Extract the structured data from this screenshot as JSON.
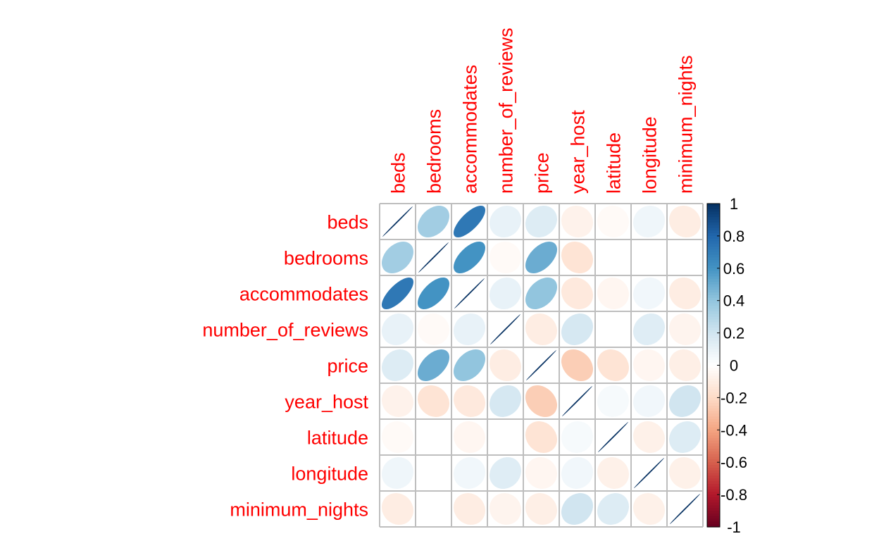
{
  "chart_data": {
    "type": "heatmap",
    "variables": [
      "beds",
      "bedrooms",
      "accommodates",
      "number_of_reviews",
      "price",
      "year_host",
      "latitude",
      "longitude",
      "minimum_nights"
    ],
    "matrix": [
      [
        1.0,
        0.35,
        0.72,
        0.1,
        0.15,
        -0.07,
        -0.03,
        0.07,
        -0.1
      ],
      [
        0.35,
        1.0,
        0.6,
        -0.03,
        0.5,
        -0.15,
        0.0,
        0.0,
        0.0
      ],
      [
        0.72,
        0.6,
        1.0,
        0.1,
        0.4,
        -0.12,
        -0.05,
        0.06,
        -0.1
      ],
      [
        0.1,
        -0.03,
        0.1,
        1.0,
        -0.1,
        0.18,
        0.0,
        0.14,
        -0.06
      ],
      [
        0.15,
        0.5,
        0.4,
        -0.1,
        1.0,
        -0.25,
        -0.15,
        -0.05,
        -0.09
      ],
      [
        -0.07,
        -0.15,
        -0.12,
        0.18,
        -0.25,
        1.0,
        0.04,
        0.06,
        0.2
      ],
      [
        -0.03,
        0.0,
        -0.05,
        0.0,
        -0.15,
        0.04,
        1.0,
        -0.08,
        0.15
      ],
      [
        0.07,
        0.0,
        0.06,
        0.14,
        -0.05,
        0.06,
        -0.08,
        1.0,
        -0.08
      ],
      [
        -0.1,
        0.0,
        -0.1,
        -0.06,
        -0.09,
        0.2,
        0.15,
        -0.08,
        1.0
      ]
    ],
    "colorbar": {
      "range": [
        -1,
        1
      ],
      "ticks": [
        "1",
        "0.8",
        "0.6",
        "0.4",
        "0.2",
        "0",
        "-0.2",
        "-0.4",
        "-0.6",
        "-0.8",
        "-1"
      ]
    },
    "title": "",
    "colors": {
      "label": "#ff0000",
      "grid": "#bebebe",
      "negative_extreme": "#67001f",
      "neutral": "#ffffff",
      "positive_extreme": "#053061"
    }
  }
}
